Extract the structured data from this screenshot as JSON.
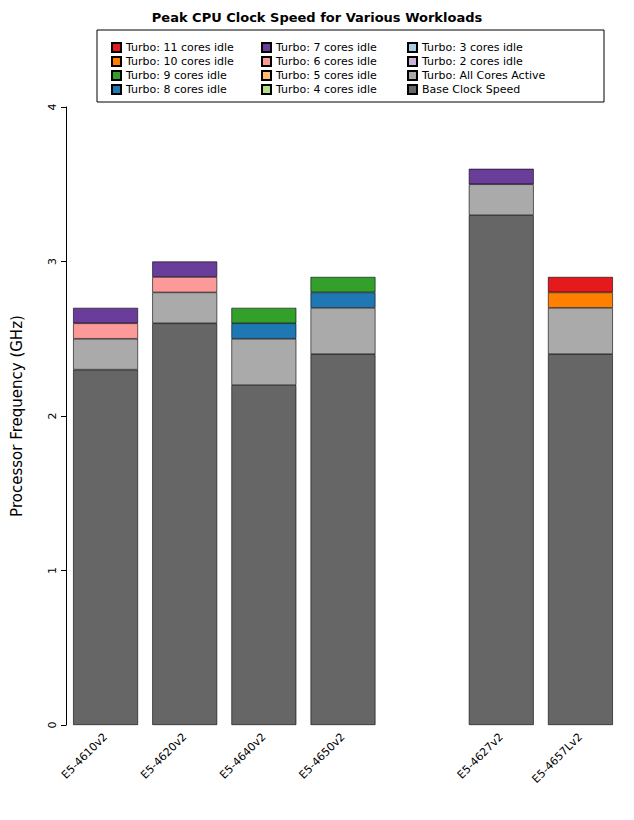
{
  "chart_data": {
    "type": "bar",
    "title": "Peak CPU Clock Speed for Various Workloads",
    "y_label": "Processor Frequency (GHz)",
    "categories": [
      "E5-4610v2",
      "E5-4620v2",
      "E5-4640v2",
      "E5-4650v2",
      null,
      "E5-4627v2",
      "E5-4657Lv2"
    ],
    "stacked": true,
    "grid": false,
    "legend": "top",
    "ylim": [
      0,
      4
    ],
    "yticks": [
      0,
      1,
      2,
      3,
      4
    ],
    "series": [
      {
        "name": "Turbo: 11 cores idle",
        "color": "#e41a1c",
        "values": [
          null,
          null,
          null,
          null,
          null,
          null,
          0.1
        ]
      },
      {
        "name": "Turbo: 10 cores idle",
        "color": "#ff7f00",
        "values": [
          null,
          null,
          null,
          null,
          null,
          null,
          0.1
        ]
      },
      {
        "name": "Turbo: 9 cores idle",
        "color": "#33a02c",
        "values": [
          null,
          null,
          0.1,
          0.1,
          null,
          null,
          null
        ]
      },
      {
        "name": "Turbo: 8 cores idle",
        "color": "#1f78b4",
        "values": [
          null,
          null,
          0.1,
          0.1,
          null,
          null,
          null
        ]
      },
      {
        "name": "Turbo: 7 cores idle",
        "color": "#6a3d9a",
        "values": [
          0.1,
          0.1,
          null,
          null,
          null,
          0.1,
          null
        ]
      },
      {
        "name": "Turbo: 6 cores idle",
        "color": "#fb9a99",
        "values": [
          0.1,
          0.1,
          null,
          null,
          null,
          null,
          null
        ]
      },
      {
        "name": "Turbo: 5 cores idle",
        "color": "#fdbf6f",
        "values": [
          null,
          null,
          null,
          null,
          null,
          null,
          null
        ]
      },
      {
        "name": "Turbo: 4 cores idle",
        "color": "#b2df8a",
        "values": [
          null,
          null,
          null,
          null,
          null,
          null,
          null
        ]
      },
      {
        "name": "Turbo: 3 cores idle",
        "color": "#a6cee3",
        "values": [
          null,
          null,
          null,
          null,
          null,
          null,
          null
        ]
      },
      {
        "name": "Turbo: 2 cores idle",
        "color": "#cab2d6",
        "values": [
          null,
          null,
          null,
          null,
          null,
          null,
          null
        ]
      },
      {
        "name": "Turbo: All Cores Active",
        "color": "#aaaaaa",
        "values": [
          0.2,
          0.2,
          0.3,
          0.3,
          null,
          0.2,
          0.3
        ]
      },
      {
        "name": "Base Clock Speed",
        "color": "#666666",
        "values": [
          2.3,
          2.6,
          2.2,
          2.4,
          null,
          3.3,
          2.4
        ]
      }
    ]
  }
}
